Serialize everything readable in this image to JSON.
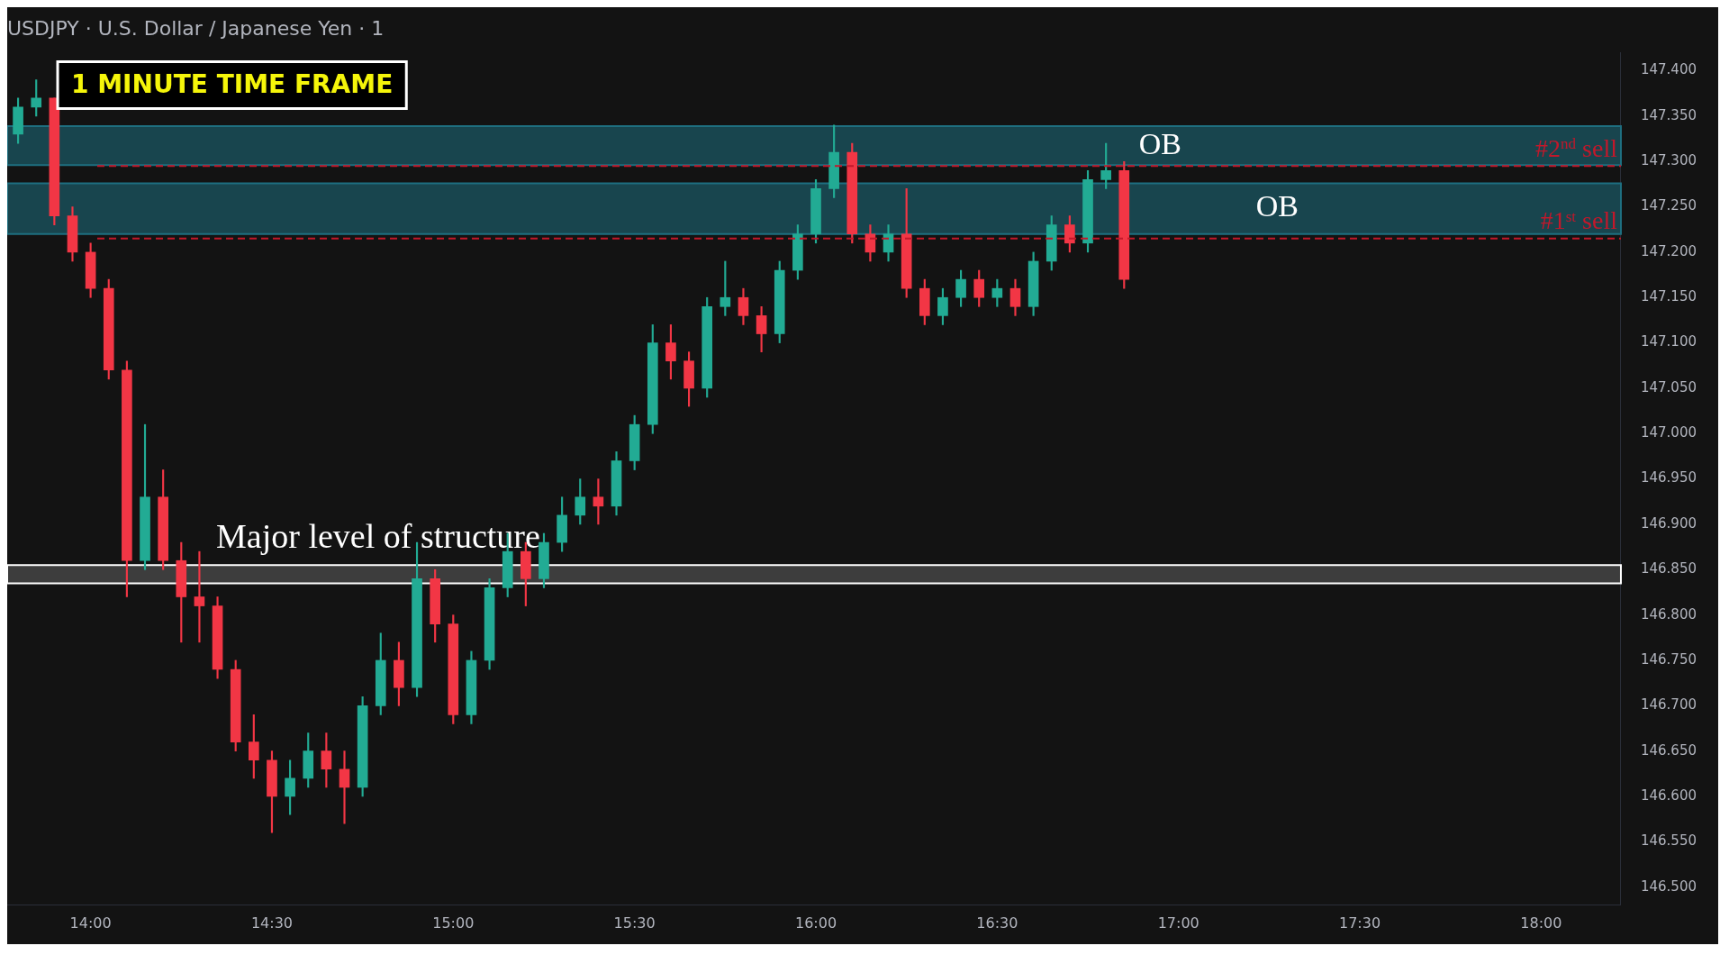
{
  "chart_data": {
    "type": "candlestick",
    "title": "USDJPY · U.S. Dollar / Japanese Yen · 1",
    "annotations": [
      "1 MINUTE TIME FRAME"
    ],
    "x": [
      13.8,
      13.85,
      13.9,
      13.95,
      14.0,
      14.05,
      14.1,
      14.15,
      14.2,
      14.25,
      14.3,
      14.35,
      14.4,
      14.45,
      14.5,
      14.55,
      14.6,
      14.65,
      14.7,
      14.75,
      14.8,
      14.85,
      14.9,
      14.95,
      15.0,
      15.05,
      15.1,
      15.15,
      15.2,
      15.25,
      15.3,
      15.35,
      15.4,
      15.45,
      15.5,
      15.55,
      15.6,
      15.65,
      15.7,
      15.75,
      15.8,
      15.85,
      15.9,
      15.95,
      16.0,
      16.05,
      16.1,
      16.15,
      16.2,
      16.25,
      16.3,
      16.35,
      16.4,
      16.45,
      16.5,
      16.55,
      16.6,
      16.65,
      16.7,
      16.75,
      16.8,
      16.85
    ],
    "ohlc": [
      [
        147.33,
        147.37,
        147.32,
        147.36
      ],
      [
        147.36,
        147.39,
        147.35,
        147.37
      ],
      [
        147.37,
        147.37,
        147.23,
        147.24
      ],
      [
        147.24,
        147.25,
        147.19,
        147.2
      ],
      [
        147.2,
        147.21,
        147.15,
        147.16
      ],
      [
        147.16,
        147.17,
        147.06,
        147.07
      ],
      [
        147.07,
        147.08,
        146.82,
        146.86
      ],
      [
        146.86,
        147.01,
        146.85,
        146.93
      ],
      [
        146.93,
        146.96,
        146.85,
        146.86
      ],
      [
        146.86,
        146.88,
        146.77,
        146.82
      ],
      [
        146.82,
        146.87,
        146.77,
        146.81
      ],
      [
        146.81,
        146.82,
        146.73,
        146.74
      ],
      [
        146.74,
        146.75,
        146.65,
        146.66
      ],
      [
        146.66,
        146.69,
        146.62,
        146.64
      ],
      [
        146.64,
        146.65,
        146.56,
        146.6
      ],
      [
        146.6,
        146.64,
        146.58,
        146.62
      ],
      [
        146.62,
        146.67,
        146.61,
        146.65
      ],
      [
        146.65,
        146.67,
        146.61,
        146.63
      ],
      [
        146.63,
        146.65,
        146.57,
        146.61
      ],
      [
        146.61,
        146.71,
        146.6,
        146.7
      ],
      [
        146.7,
        146.78,
        146.69,
        146.75
      ],
      [
        146.75,
        146.77,
        146.7,
        146.72
      ],
      [
        146.72,
        146.88,
        146.71,
        146.84
      ],
      [
        146.84,
        146.85,
        146.77,
        146.79
      ],
      [
        146.79,
        146.8,
        146.68,
        146.69
      ],
      [
        146.69,
        146.76,
        146.68,
        146.75
      ],
      [
        146.75,
        146.84,
        146.74,
        146.83
      ],
      [
        146.83,
        146.89,
        146.82,
        146.87
      ],
      [
        146.87,
        146.88,
        146.81,
        146.84
      ],
      [
        146.84,
        146.89,
        146.83,
        146.88
      ],
      [
        146.88,
        146.93,
        146.87,
        146.91
      ],
      [
        146.91,
        146.95,
        146.9,
        146.93
      ],
      [
        146.93,
        146.95,
        146.9,
        146.92
      ],
      [
        146.92,
        146.98,
        146.91,
        146.97
      ],
      [
        146.97,
        147.02,
        146.96,
        147.01
      ],
      [
        147.01,
        147.12,
        147.0,
        147.1
      ],
      [
        147.1,
        147.12,
        147.06,
        147.08
      ],
      [
        147.08,
        147.09,
        147.03,
        147.05
      ],
      [
        147.05,
        147.15,
        147.04,
        147.14
      ],
      [
        147.14,
        147.19,
        147.13,
        147.15
      ],
      [
        147.15,
        147.16,
        147.12,
        147.13
      ],
      [
        147.13,
        147.14,
        147.09,
        147.11
      ],
      [
        147.11,
        147.19,
        147.1,
        147.18
      ],
      [
        147.18,
        147.23,
        147.17,
        147.22
      ],
      [
        147.22,
        147.28,
        147.21,
        147.27
      ],
      [
        147.27,
        147.34,
        147.26,
        147.31
      ],
      [
        147.31,
        147.32,
        147.21,
        147.22
      ],
      [
        147.22,
        147.23,
        147.19,
        147.2
      ],
      [
        147.2,
        147.23,
        147.19,
        147.22
      ],
      [
        147.22,
        147.27,
        147.15,
        147.16
      ],
      [
        147.16,
        147.17,
        147.12,
        147.13
      ],
      [
        147.13,
        147.16,
        147.12,
        147.15
      ],
      [
        147.15,
        147.18,
        147.14,
        147.17
      ],
      [
        147.17,
        147.18,
        147.14,
        147.15
      ],
      [
        147.15,
        147.17,
        147.14,
        147.16
      ],
      [
        147.16,
        147.17,
        147.13,
        147.14
      ],
      [
        147.14,
        147.2,
        147.13,
        147.19
      ],
      [
        147.19,
        147.24,
        147.18,
        147.23
      ],
      [
        147.23,
        147.24,
        147.2,
        147.21
      ],
      [
        147.21,
        147.29,
        147.2,
        147.28
      ],
      [
        147.28,
        147.32,
        147.27,
        147.29
      ],
      [
        147.29,
        147.3,
        147.16,
        147.17
      ]
    ],
    "xlim": [
      13.77,
      18.22
    ],
    "xticks": [
      {
        "value": 14,
        "label": "14:00"
      },
      {
        "value": 14.5,
        "label": "14:30"
      },
      {
        "value": 15,
        "label": "15:00"
      },
      {
        "value": 15.5,
        "label": "15:30"
      },
      {
        "value": 16,
        "label": "16:00"
      },
      {
        "value": 16.5,
        "label": "16:30"
      },
      {
        "value": 17,
        "label": "17:00"
      },
      {
        "value": 17.5,
        "label": "17:30"
      },
      {
        "value": 18,
        "label": "18:00"
      }
    ],
    "ylim": [
      146.48,
      147.42
    ],
    "yticks": [
      {
        "value": 146.5,
        "label": "146.500"
      },
      {
        "value": 146.55,
        "label": "146.550"
      },
      {
        "value": 146.6,
        "label": "146.600"
      },
      {
        "value": 146.65,
        "label": "146.650"
      },
      {
        "value": 146.7,
        "label": "146.700"
      },
      {
        "value": 146.75,
        "label": "146.750"
      },
      {
        "value": 146.8,
        "label": "146.800"
      },
      {
        "value": 146.85,
        "label": "146.850"
      },
      {
        "value": 146.9,
        "label": "146.900"
      },
      {
        "value": 146.95,
        "label": "146.950"
      },
      {
        "value": 147.0,
        "label": "147.000"
      },
      {
        "value": 147.05,
        "label": "147.050"
      },
      {
        "value": 147.1,
        "label": "147.100"
      },
      {
        "value": 147.15,
        "label": "147.150"
      },
      {
        "value": 147.2,
        "label": "147.200"
      },
      {
        "value": 147.25,
        "label": "147.250"
      },
      {
        "value": 147.3,
        "label": "147.300"
      },
      {
        "value": 147.35,
        "label": "147.350"
      },
      {
        "value": 147.4,
        "label": "147.400"
      }
    ],
    "ref_lines": [
      {
        "axis": "y",
        "value": 147.295,
        "label": "#2$^{nd}$ sell",
        "color": "#c2182b",
        "line_style": "dashed"
      },
      {
        "axis": "y",
        "value": 147.215,
        "label": "#1$^{st}$ sell",
        "color": "#c2182b",
        "line_style": "dashed"
      }
    ],
    "bands": [
      {
        "axis": "y",
        "from": 147.296,
        "to": 147.339,
        "label": "OB",
        "color": "#1e6f80"
      },
      {
        "axis": "y",
        "from": 147.22,
        "to": 147.276,
        "label": "OB",
        "color": "#1e6f80"
      },
      {
        "axis": "y",
        "from": 146.835,
        "to": 146.855,
        "label": "Major level of structure",
        "color": "#ffffff"
      }
    ],
    "legend": false
  }
}
